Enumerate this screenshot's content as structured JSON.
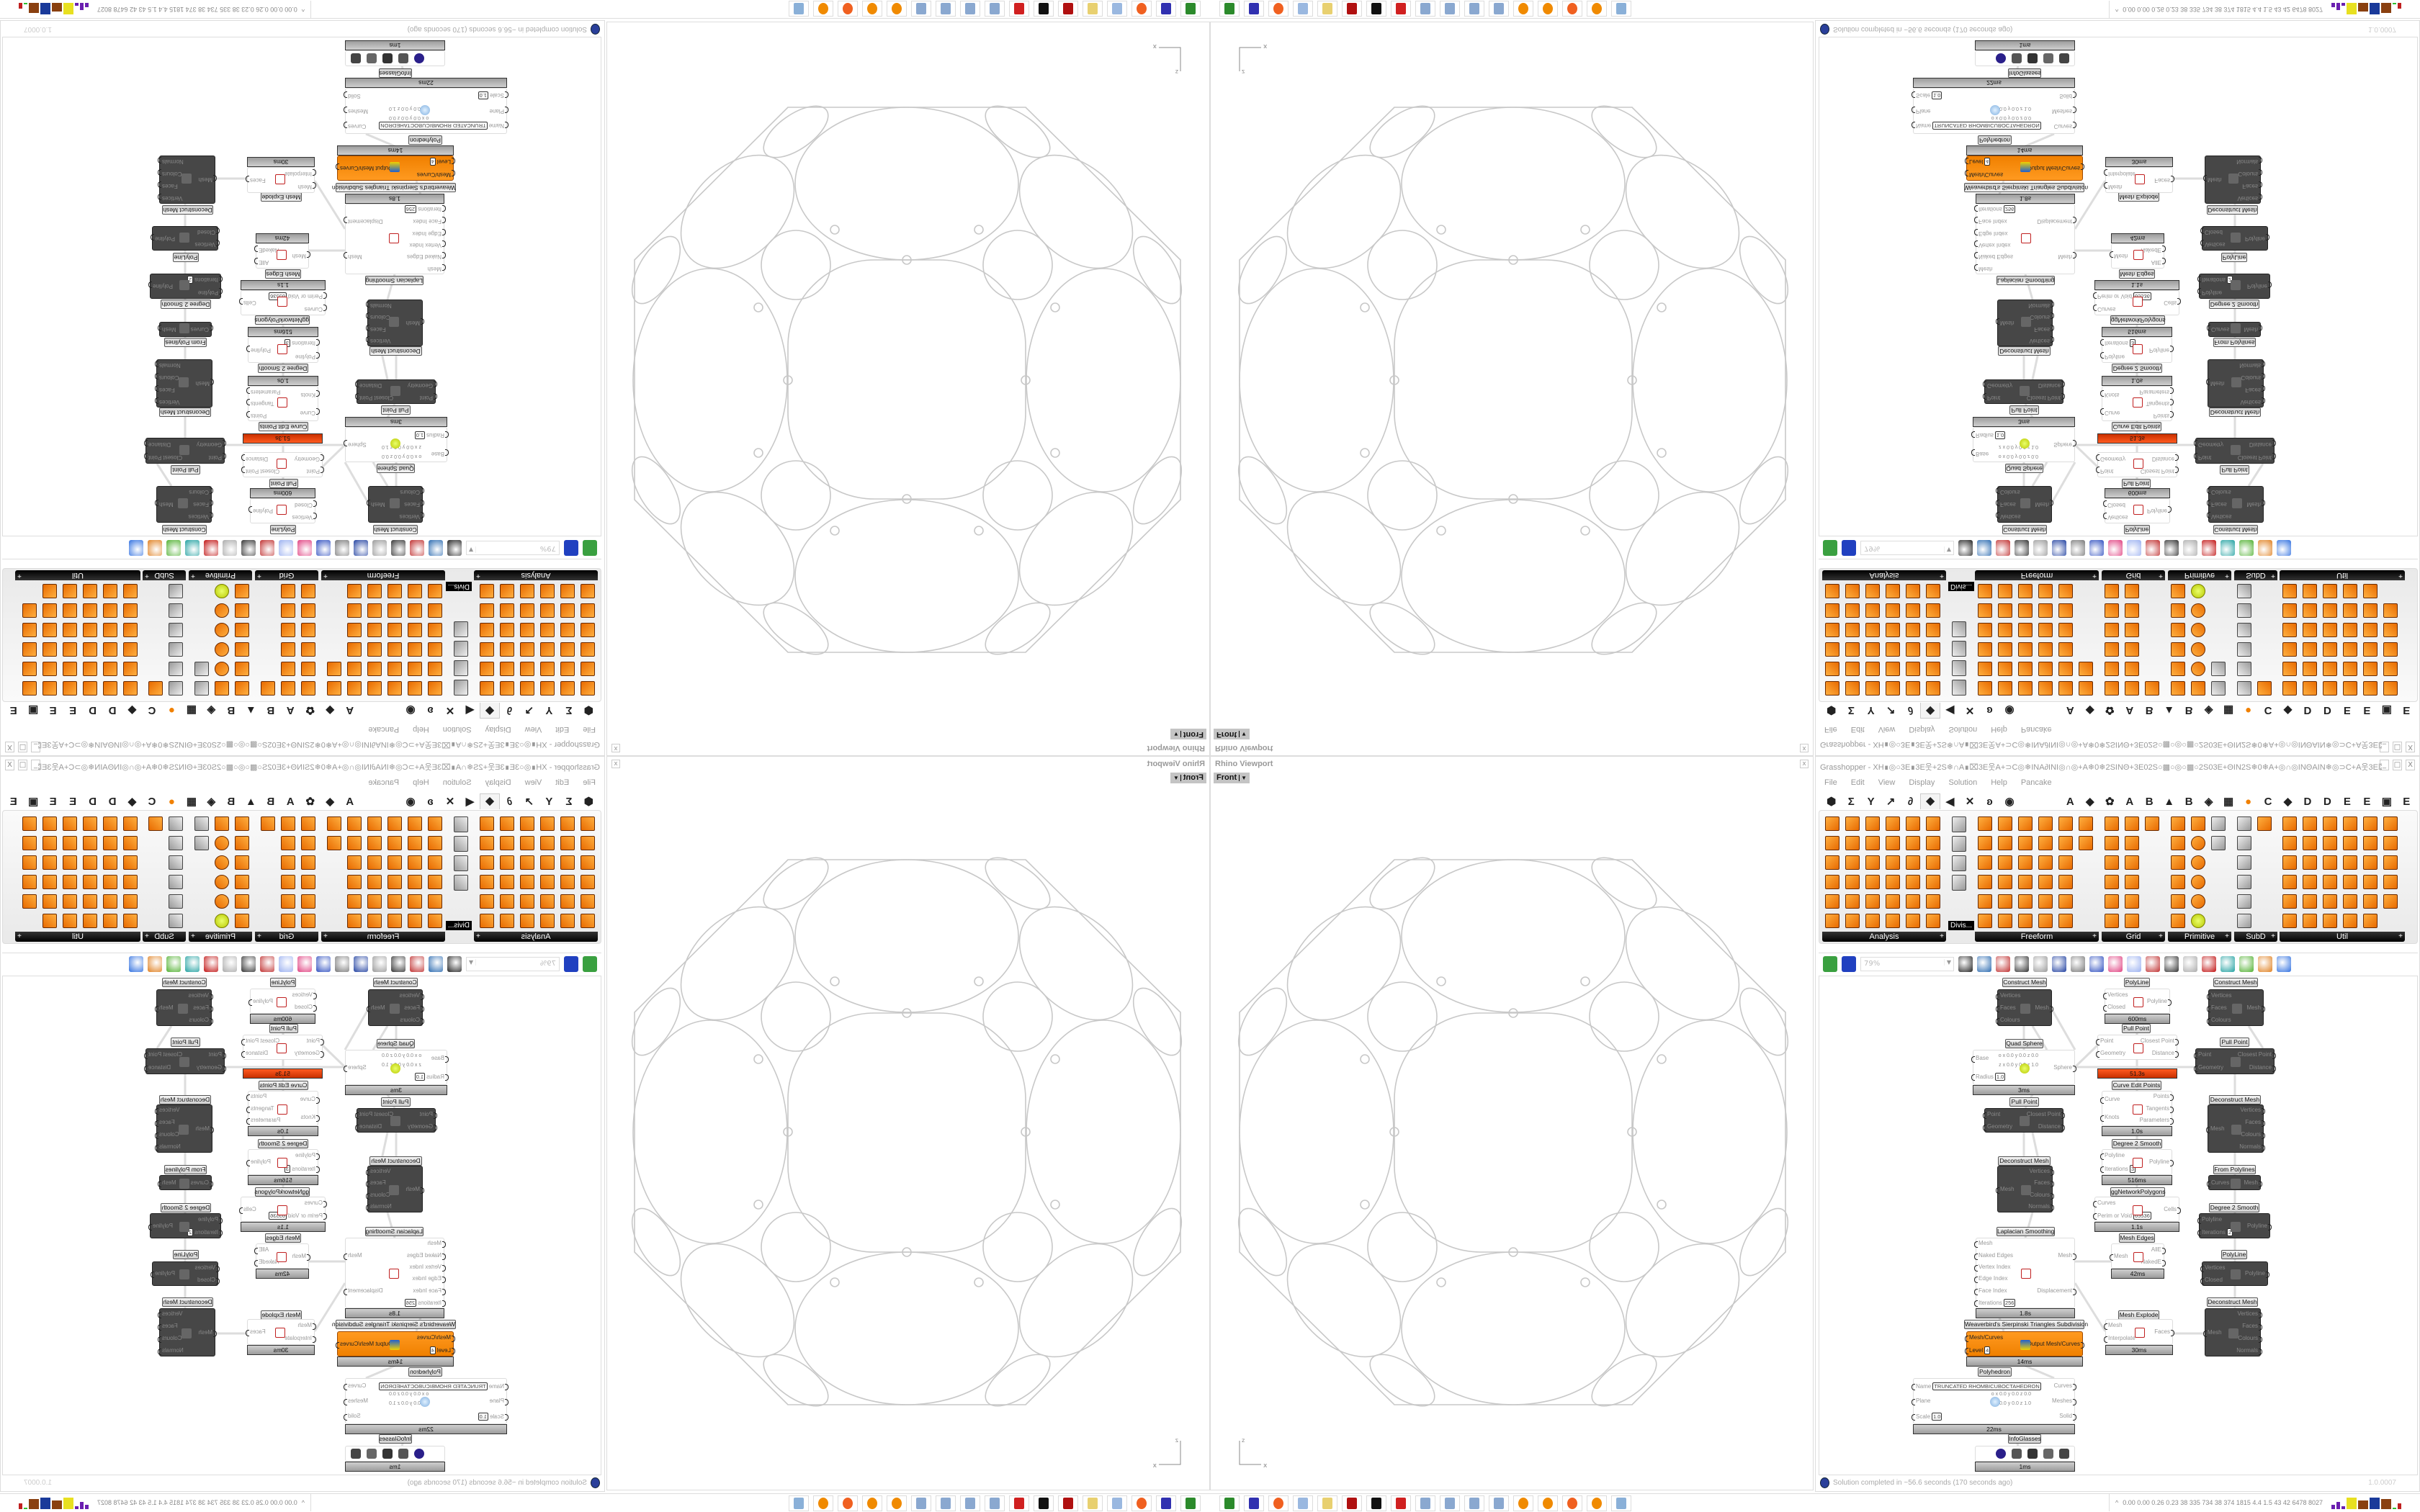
{
  "viewport": {
    "title": "Rhino Viewport",
    "view_tab": "Front",
    "close_label": "x",
    "axis_x": "x",
    "axis_z": "z",
    "stroke_color": "#c8c8c8"
  },
  "grasshopper": {
    "title": "Grasshopper - XH∎◎○3E∎3E웃+2S❄∩A∎⌧3E웃A+⊃C◎❄INA∂INI◎∩◎+A❄0❄2SINΘ+3E02S○▩○◎○▩○2S03E+ΘIN2S❄0❄A+◎∩◎INΘAIN❄◎⊃C+A웃3E⌧A∩❄...",
    "window_buttons": [
      "_",
      "□",
      "X"
    ],
    "menu": [
      "File",
      "Edit",
      "View",
      "Display",
      "Solution",
      "Help",
      "Pancake"
    ],
    "tab_icons": [
      "⬢",
      "Σ",
      "Y",
      "↗",
      "∂",
      "◆",
      "◀",
      "✕",
      "ʚ",
      "◉"
    ],
    "tab_letters": [
      "A",
      "◆",
      "✿",
      "A",
      "B",
      "▲",
      "B",
      "◈",
      "▦",
      "●",
      "C",
      "◆",
      "D",
      "D",
      "E",
      "E",
      "▣",
      "E"
    ],
    "selected_tab_index": 5,
    "palette_panels": [
      {
        "label": "Analysis"
      },
      {
        "label": ""
      },
      {
        "label": "Freeform"
      },
      {
        "label": "Grid"
      },
      {
        "label": "Primitive"
      },
      {
        "label": "SubD"
      },
      {
        "label": "Util"
      }
    ],
    "divis_tooltip": "Divis...",
    "zoom_value": "79%",
    "accent_orange": "#f08000",
    "alert_red": "#d84315",
    "nodes": [
      {
        "title": "Construct Mesh",
        "style": "dark",
        "inputs": [
          {
            "n": "Vertices"
          },
          {
            "n": "Faces"
          },
          {
            "n": "Colours"
          }
        ],
        "outputs": [
          {
            "n": "Mesh"
          }
        ]
      },
      {
        "title": "PolyLine",
        "style": "white",
        "inputs": [
          {
            "n": "Vertices"
          },
          {
            "n": "Closed"
          }
        ],
        "outputs": [
          {
            "n": "Polyline"
          }
        ],
        "time": "600ms"
      },
      {
        "title": "Construct Mesh",
        "style": "dark",
        "inputs": [
          {
            "n": "Vertices"
          },
          {
            "n": "Faces"
          },
          {
            "n": "Colours"
          }
        ],
        "outputs": [
          {
            "n": "Mesh"
          }
        ]
      },
      {
        "title": "Pull Point",
        "style": "white",
        "inputs": [
          {
            "n": "Point"
          },
          {
            "n": "Geometry"
          }
        ],
        "outputs": [
          {
            "n": "Closest Point"
          },
          {
            "n": "Distance"
          }
        ],
        "time": "51.3s",
        "time_alert": true
      },
      {
        "title": "Quad Sphere",
        "style": "white",
        "inputs": [
          {
            "n": "Base"
          },
          {
            "n": "Radius",
            "v": "1.0"
          }
        ],
        "outputs": [
          {
            "n": "Sphere"
          }
        ],
        "extras": [
          "o x 0.0 y 0.0 z 0.0",
          "z x 0.0 y 0.0 z 1.0"
        ],
        "time": "3ms"
      },
      {
        "title": "Pull Point",
        "style": "dark",
        "inputs": [
          {
            "n": "Point"
          },
          {
            "n": "Geometry"
          }
        ],
        "outputs": [
          {
            "n": "Closest Point"
          },
          {
            "n": "Distance"
          }
        ]
      },
      {
        "title": "Curve Edit Points",
        "style": "white",
        "inputs": [
          {
            "n": "Curve"
          },
          {
            "n": "Knots"
          }
        ],
        "outputs": [
          {
            "n": "Points"
          },
          {
            "n": "Tangents"
          },
          {
            "n": "Parameters"
          }
        ],
        "time": "1.0s"
      },
      {
        "title": "Pull Point",
        "style": "dark",
        "inputs": [
          {
            "n": "Point"
          },
          {
            "n": "Geometry"
          }
        ],
        "outputs": [
          {
            "n": "Closest Point"
          },
          {
            "n": "Distance"
          }
        ]
      },
      {
        "title": "Deconstruct Mesh",
        "style": "dark",
        "inputs": [
          {
            "n": "Mesh"
          }
        ],
        "outputs": [
          {
            "n": "Vertices"
          },
          {
            "n": "Faces"
          },
          {
            "n": "Colours"
          },
          {
            "n": "Normals"
          }
        ]
      },
      {
        "title": "Degree 2 Smooth",
        "style": "white",
        "inputs": [
          {
            "n": "Polyline"
          },
          {
            "n": "Iterations",
            "v": "3"
          }
        ],
        "outputs": [
          {
            "n": "Polyline"
          }
        ],
        "time": "516ms"
      },
      {
        "title": "Deconstruct Mesh",
        "style": "dark",
        "inputs": [
          {
            "n": "Mesh"
          }
        ],
        "outputs": [
          {
            "n": "Vertices"
          },
          {
            "n": "Faces"
          },
          {
            "n": "Colours"
          },
          {
            "n": "Normals"
          }
        ]
      },
      {
        "title": "From Polylines",
        "style": "dark",
        "inputs": [
          {
            "n": "Curves"
          }
        ],
        "outputs": [
          {
            "n": "Mesh"
          }
        ]
      },
      {
        "title": "ggNetworkPolygons",
        "style": "white",
        "inputs": [
          {
            "n": "Curves"
          },
          {
            "n": "Perim or Void",
            "v": "65536"
          }
        ],
        "outputs": [
          {
            "n": "Cells"
          }
        ],
        "time": "1.1s"
      },
      {
        "title": "Degree 2 Smooth",
        "style": "dark",
        "inputs": [
          {
            "n": "Polyline"
          },
          {
            "n": "Iterations",
            "v": "2"
          }
        ],
        "outputs": [
          {
            "n": "Polyline"
          }
        ]
      },
      {
        "title": "Laplacian Smoothing",
        "style": "white",
        "inputs": [
          {
            "n": "Mesh"
          },
          {
            "n": "Naked Edges"
          },
          {
            "n": "Vertex Index"
          },
          {
            "n": "Edge Index"
          },
          {
            "n": "Face Index"
          },
          {
            "n": "Iterations",
            "v": "256"
          }
        ],
        "outputs": [
          {
            "n": "Mesh"
          },
          {
            "n": "Displacement"
          }
        ],
        "time": "1.8s"
      },
      {
        "title": "Mesh Edges",
        "style": "white",
        "inputs": [
          {
            "n": "Mesh"
          }
        ],
        "outputs": [
          {
            "n": "AllE"
          },
          {
            "n": "NakedE"
          }
        ],
        "time": "42ms"
      },
      {
        "title": "PolyLine",
        "style": "dark",
        "inputs": [
          {
            "n": "Vertices"
          },
          {
            "n": "Closed"
          }
        ],
        "outputs": [
          {
            "n": "Polyline"
          }
        ]
      },
      {
        "title": "Deconstruct Mesh",
        "style": "dark",
        "inputs": [
          {
            "n": "Mesh"
          }
        ],
        "outputs": [
          {
            "n": "Vertices"
          },
          {
            "n": "Faces"
          },
          {
            "n": "Colours"
          },
          {
            "n": "Normals"
          }
        ]
      },
      {
        "title": "Mesh Explode",
        "style": "white",
        "inputs": [
          {
            "n": "Mesh"
          },
          {
            "n": "Interpolate"
          }
        ],
        "outputs": [
          {
            "n": "Faces"
          }
        ],
        "time": "30ms"
      },
      {
        "title": "Weaverbird's Sierpinski Triangles Subdivision",
        "style": "orange",
        "inputs": [
          {
            "n": "Mesh/Curves"
          },
          {
            "n": "Level",
            "v": "4"
          }
        ],
        "outputs": [
          {
            "n": "Output Mesh/Curves"
          }
        ],
        "time": "14ms"
      },
      {
        "title": "Polyhedron",
        "style": "white",
        "inputs": [
          {
            "n": "Name",
            "v": "TRUNCATED RHOMBICUBOCTAHEDRON"
          },
          {
            "n": "Plane"
          },
          {
            "n": "Scale",
            "v": "1.0"
          }
        ],
        "outputs": [
          {
            "n": "Curves"
          },
          {
            "n": "Meshes"
          },
          {
            "n": "Solid"
          }
        ],
        "extras": [
          "o x 0.0 y 0.0 z 0.0",
          "z x 0.0 y 0.0 z 1.0"
        ],
        "time": "22ms"
      },
      {
        "title": "InfoGlasses",
        "style": "white",
        "inputs": [],
        "outputs": [],
        "time": "1ms"
      }
    ],
    "status_message": "Solution completed in ~56.6 seconds (170 seconds ago)",
    "version": "1.0.0007"
  },
  "taskbar": {
    "apps": [
      "terminal",
      "save-64",
      "firefox",
      "calculator",
      "folder",
      "sw-2020",
      "inkscape",
      "red-app",
      "paint",
      "paint",
      "paint",
      "paint",
      "blender",
      "blender",
      "firefox",
      "blender",
      "notepad"
    ],
    "app_colors": [
      "#2b8a2b",
      "#3030b0",
      "#f06020",
      "#9ab8e0",
      "#e8d070",
      "#b01010",
      "#111111",
      "#d02020",
      "#8aa8d0",
      "#8aa8d0",
      "#8aa8d0",
      "#8aa8d0",
      "#f08a00",
      "#f08a00",
      "#f06020",
      "#f08a00",
      "#8ab0d8"
    ],
    "tray_stats": "0.00 0.00 0.26 0.23 38 335 734 38 374 1815 4.4 1.5 43 42 6478 8027"
  }
}
